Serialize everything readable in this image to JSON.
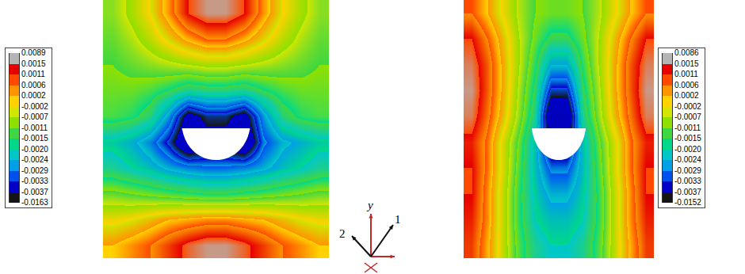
{
  "chart_data": [
    {
      "type": "heatmap",
      "colorbar": {
        "range": [
          -0.0163,
          0.0089
        ],
        "ticks": [
          0.0089,
          0.0015,
          0.0011,
          0.0006,
          0.0002,
          -0.0002,
          -0.0007,
          -0.0011,
          -0.0015,
          {
            "value": -0.002,
            "label": "-0.0020"
          },
          -0.0024,
          -0.0029,
          -0.0033,
          -0.0037,
          -0.0163
        ],
        "colors": [
          "#b4b4b4",
          "#e60000",
          "#ff4a00",
          "#ff9400",
          "#ffd200",
          "#d2e600",
          "#8fe000",
          "#3fd73f",
          "#00d98a",
          "#00c8c8",
          "#00a0e6",
          "#0050f0",
          "#0000c8",
          "#141414"
        ]
      },
      "z": [
        [
          -0.0009,
          -0.0006,
          -0.0002,
          0.0004,
          0.0011,
          0.0014,
          0.0014,
          0.0011,
          0.0004,
          -0.0002,
          -0.0006,
          -0.0009
        ],
        [
          -0.001,
          -0.0008,
          -0.0005,
          -0.0001,
          0.0003,
          0.0006,
          0.0006,
          0.0003,
          -0.0001,
          -0.0005,
          -0.0008,
          -0.001
        ],
        [
          -0.0011,
          -0.001,
          -0.0009,
          -0.0008,
          -0.0007,
          -0.0006,
          -0.0006,
          -0.0007,
          -0.0008,
          -0.0009,
          -0.001,
          -0.0011
        ],
        [
          -0.0012,
          -0.0012,
          -0.0013,
          -0.0015,
          -0.0018,
          -0.0017,
          -0.0017,
          -0.0018,
          -0.0015,
          -0.0013,
          -0.0012,
          -0.0012
        ],
        [
          -0.0013,
          -0.0014,
          -0.0017,
          -0.0026,
          -0.004,
          -0.0035,
          -0.0035,
          -0.004,
          -0.0026,
          -0.0017,
          -0.0014,
          -0.0013
        ],
        [
          -0.0021,
          -0.0023,
          -0.0027,
          -0.0034,
          -0.0045,
          -0.004,
          -0.004,
          -0.0045,
          -0.003,
          -0.0025,
          -0.0023,
          -0.0021
        ],
        [
          -0.0018,
          -0.002,
          -0.0022,
          -0.0025,
          -0.0027,
          -0.0028,
          -0.0028,
          -0.0027,
          -0.0025,
          -0.0022,
          -0.002,
          -0.0018
        ],
        [
          -0.001,
          -0.0011,
          -0.0012,
          -0.0013,
          -0.0014,
          -0.0015,
          -0.0015,
          -0.0014,
          -0.0013,
          -0.0012,
          -0.0011,
          -0.001
        ],
        [
          -0.0003,
          -0.0002,
          0.0,
          0.0002,
          0.0003,
          0.0004,
          0.0004,
          0.0003,
          0.0002,
          0.0,
          -0.0002,
          -0.0003
        ],
        [
          0.0002,
          0.0004,
          0.0006,
          0.0009,
          0.0012,
          0.0014,
          0.0014,
          0.0012,
          0.0009,
          0.0006,
          0.0004,
          0.0002
        ]
      ]
    },
    {
      "type": "heatmap",
      "colorbar": {
        "range": [
          -0.0152,
          0.0086
        ],
        "ticks": [
          0.0086,
          0.0015,
          0.0011,
          0.0006,
          0.0002,
          -0.0002,
          -0.0007,
          -0.0011,
          -0.0015,
          {
            "value": -0.002,
            "label": "-0.0020"
          },
          -0.0024,
          -0.0029,
          -0.0033,
          -0.0037,
          -0.0152
        ],
        "colors": [
          "#b4b4b4",
          "#e60000",
          "#ff4a00",
          "#ff9400",
          "#ffd200",
          "#d2e600",
          "#8fe000",
          "#3fd73f",
          "#00d98a",
          "#00c8c8",
          "#00a0e6",
          "#0050f0",
          "#0000c8",
          "#141414"
        ]
      },
      "z": [
        [
          0.0006,
          0.0002,
          -0.0003,
          -0.0008,
          -0.0011,
          -0.0012,
          -0.0012,
          -0.0011,
          -0.0008,
          -0.0003,
          0.0002,
          0.0006
        ],
        [
          0.0011,
          0.0006,
          0.0,
          -0.0007,
          -0.0012,
          -0.0016,
          -0.0016,
          -0.0012,
          -0.0007,
          0.0,
          0.0006,
          0.0011
        ],
        [
          0.0013,
          0.0008,
          0.0001,
          -0.0007,
          -0.0014,
          -0.0024,
          -0.0024,
          -0.0014,
          -0.0007,
          0.0001,
          0.0008,
          0.0013
        ],
        [
          0.0014,
          0.0008,
          0.0001,
          -0.0008,
          -0.0016,
          -0.0034,
          -0.0034,
          -0.0016,
          -0.0008,
          0.0001,
          0.0008,
          0.0014
        ],
        [
          0.0013,
          0.0007,
          0.0,
          -0.0009,
          -0.0018,
          -0.0045,
          -0.0045,
          -0.0018,
          -0.0009,
          0.0,
          0.0007,
          0.0013
        ],
        [
          0.001,
          0.0005,
          -0.0004,
          -0.0012,
          -0.0022,
          -0.0038,
          -0.0038,
          -0.0022,
          -0.0012,
          -0.0004,
          0.0005,
          0.001
        ],
        [
          0.0011,
          0.0005,
          -0.0004,
          -0.0013,
          -0.0022,
          -0.003,
          -0.003,
          -0.0022,
          -0.0013,
          -0.0004,
          0.0005,
          0.0011
        ],
        [
          0.0011,
          0.0004,
          -0.0005,
          -0.0014,
          -0.0021,
          -0.0025,
          -0.0025,
          -0.0021,
          -0.0014,
          -0.0005,
          0.0004,
          0.0011
        ],
        [
          0.001,
          0.0004,
          -0.0005,
          -0.0014,
          -0.002,
          -0.0022,
          -0.0022,
          -0.002,
          -0.0014,
          -0.0005,
          0.0004,
          0.001
        ],
        [
          0.0009,
          0.0003,
          -0.0005,
          -0.0013,
          -0.0018,
          -0.002,
          -0.002,
          -0.0018,
          -0.0013,
          -0.0005,
          0.0003,
          0.0009
        ]
      ]
    }
  ],
  "axes_triad": {
    "labels": [
      "y",
      "1",
      "2"
    ]
  }
}
